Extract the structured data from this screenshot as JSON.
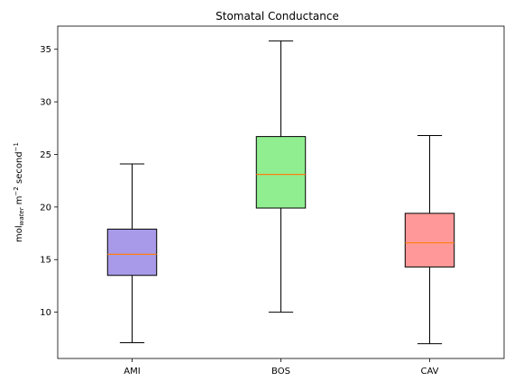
{
  "chart_data": {
    "type": "box",
    "title": "Stomatal Conductance",
    "ylabel": {
      "base": "mol",
      "sub": "water",
      "unit_a": " m",
      "sup_a": "−2",
      "unit_b": " second",
      "sup_b": "−1"
    },
    "xlabel": "",
    "ylim": [
      5.6,
      37.2
    ],
    "yticks": [
      10,
      15,
      20,
      25,
      30,
      35
    ],
    "categories": [
      "AMI",
      "BOS",
      "CAV"
    ],
    "boxes": [
      {
        "category": "AMI",
        "whisker_low": 7.1,
        "q1": 13.5,
        "median": 15.5,
        "q3": 17.9,
        "whisker_high": 24.1,
        "color": "#a89ae8"
      },
      {
        "category": "BOS",
        "whisker_low": 10.0,
        "q1": 19.9,
        "median": 23.1,
        "q3": 26.7,
        "whisker_high": 35.8,
        "color": "#90ee90"
      },
      {
        "category": "CAV",
        "whisker_low": 7.0,
        "q1": 14.3,
        "median": 16.6,
        "q3": 19.4,
        "whisker_high": 26.8,
        "color": "#ff9999"
      }
    ],
    "median_color": "#ff7f0e",
    "grid": false
  }
}
